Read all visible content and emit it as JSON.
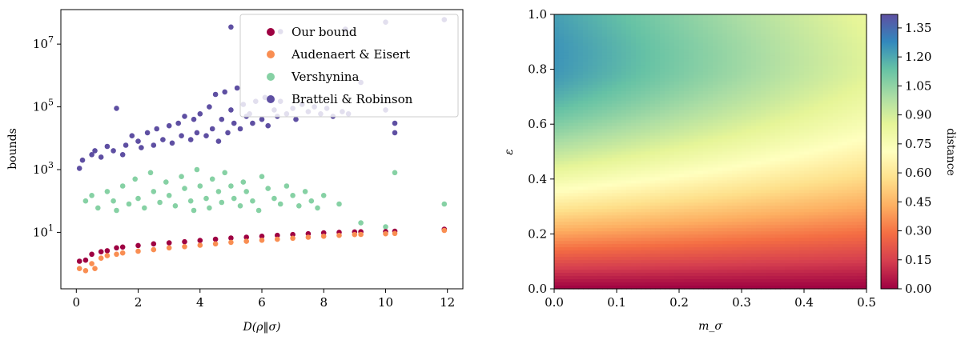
{
  "chart_data": [
    {
      "type": "scatter",
      "xlabel": "D(ρ‖σ)",
      "ylabel": "bounds",
      "xlim": [
        -0.5,
        12.5
      ],
      "ylim_log10": [
        -0.8,
        8.1
      ],
      "y_scale": "log",
      "grid": false,
      "legend_position": "top-right",
      "x_ticks": [
        0,
        2,
        4,
        6,
        8,
        10,
        12
      ],
      "y_ticks": [
        {
          "value": 10,
          "label": "10",
          "exp": "1"
        },
        {
          "value": 1000,
          "label": "10",
          "exp": "3"
        },
        {
          "value": 100000,
          "label": "10",
          "exp": "5"
        },
        {
          "value": 10000000,
          "label": "10",
          "exp": "7"
        }
      ],
      "series": [
        {
          "name": "Bratteli & Robinson",
          "color": "#5e4fa2",
          "points": [
            [
              0.1,
              1100
            ],
            [
              0.2,
              2000
            ],
            [
              0.5,
              3000
            ],
            [
              0.6,
              4000
            ],
            [
              0.8,
              2500
            ],
            [
              1.0,
              5500
            ],
            [
              1.2,
              4000
            ],
            [
              1.3,
              90000
            ],
            [
              1.5,
              3000
            ],
            [
              1.6,
              6000
            ],
            [
              1.8,
              12000
            ],
            [
              2.0,
              8000
            ],
            [
              2.1,
              5000
            ],
            [
              2.3,
              15000
            ],
            [
              2.5,
              6000
            ],
            [
              2.6,
              20000
            ],
            [
              2.8,
              9000
            ],
            [
              3.0,
              25000
            ],
            [
              3.1,
              7000
            ],
            [
              3.3,
              30000
            ],
            [
              3.4,
              12000
            ],
            [
              3.5,
              50000
            ],
            [
              3.7,
              9000
            ],
            [
              3.8,
              40000
            ],
            [
              3.9,
              15000
            ],
            [
              4.0,
              60000
            ],
            [
              4.2,
              12000
            ],
            [
              4.3,
              100000
            ],
            [
              4.4,
              20000
            ],
            [
              4.5,
              250000
            ],
            [
              4.6,
              8000
            ],
            [
              4.7,
              40000
            ],
            [
              4.8,
              300000
            ],
            [
              4.9,
              15000
            ],
            [
              5.0,
              80000
            ],
            [
              5.1,
              30000
            ],
            [
              5.2,
              400000
            ],
            [
              5.3,
              20000
            ],
            [
              5.4,
              120000
            ],
            [
              5.5,
              50000
            ],
            [
              5.6,
              60000
            ],
            [
              5.7,
              30000
            ],
            [
              5.8,
              150000
            ],
            [
              6.0,
              40000
            ],
            [
              6.1,
              200000
            ],
            [
              6.2,
              25000
            ],
            [
              6.4,
              80000
            ],
            [
              6.5,
              50000
            ],
            [
              6.6,
              150000
            ],
            [
              6.8,
              60000
            ],
            [
              7.0,
              90000
            ],
            [
              7.1,
              40000
            ],
            [
              7.3,
              120000
            ],
            [
              7.5,
              70000
            ],
            [
              7.7,
              100000
            ],
            [
              7.9,
              60000
            ],
            [
              8.1,
              90000
            ],
            [
              8.3,
              50000
            ],
            [
              8.6,
              70000
            ],
            [
              8.8,
              60000
            ],
            [
              9.2,
              600000
            ],
            [
              10.0,
              80000
            ],
            [
              10.3,
              30000
            ],
            [
              10.3,
              15000
            ],
            [
              11.9,
              60000000
            ],
            [
              10.0,
              50000000
            ],
            [
              8.7,
              30000000
            ],
            [
              6.6,
              25000000
            ],
            [
              5.0,
              35000000
            ]
          ]
        },
        {
          "name": "Vershynina",
          "color": "#86d1a4",
          "points": [
            [
              0.3,
              100
            ],
            [
              0.5,
              150
            ],
            [
              0.7,
              60
            ],
            [
              1.0,
              200
            ],
            [
              1.2,
              100
            ],
            [
              1.3,
              50
            ],
            [
              1.5,
              300
            ],
            [
              1.7,
              80
            ],
            [
              1.9,
              500
            ],
            [
              2.0,
              120
            ],
            [
              2.2,
              60
            ],
            [
              2.4,
              800
            ],
            [
              2.5,
              200
            ],
            [
              2.7,
              90
            ],
            [
              2.9,
              400
            ],
            [
              3.0,
              150
            ],
            [
              3.2,
              70
            ],
            [
              3.4,
              600
            ],
            [
              3.5,
              250
            ],
            [
              3.7,
              100
            ],
            [
              3.8,
              50
            ],
            [
              3.9,
              1000
            ],
            [
              4.0,
              300
            ],
            [
              4.2,
              120
            ],
            [
              4.3,
              60
            ],
            [
              4.4,
              500
            ],
            [
              4.6,
              200
            ],
            [
              4.7,
              90
            ],
            [
              4.8,
              800
            ],
            [
              5.0,
              300
            ],
            [
              5.1,
              120
            ],
            [
              5.3,
              70
            ],
            [
              5.4,
              400
            ],
            [
              5.5,
              200
            ],
            [
              5.7,
              100
            ],
            [
              5.9,
              50
            ],
            [
              6.0,
              600
            ],
            [
              6.2,
              250
            ],
            [
              6.4,
              120
            ],
            [
              6.6,
              80
            ],
            [
              6.8,
              300
            ],
            [
              7.0,
              150
            ],
            [
              7.2,
              70
            ],
            [
              7.4,
              200
            ],
            [
              7.6,
              100
            ],
            [
              7.8,
              60
            ],
            [
              8.0,
              150
            ],
            [
              8.5,
              80
            ],
            [
              9.2,
              20
            ],
            [
              10.0,
              15
            ],
            [
              10.3,
              800
            ],
            [
              11.9,
              80
            ]
          ]
        },
        {
          "name": "Our bound",
          "color": "#9e0142",
          "points": [
            [
              0.1,
              1.2
            ],
            [
              0.3,
              1.3
            ],
            [
              0.5,
              2.0
            ],
            [
              0.8,
              2.4
            ],
            [
              1.0,
              2.6
            ],
            [
              1.3,
              3.2
            ],
            [
              1.5,
              3.4
            ],
            [
              2.0,
              3.8
            ],
            [
              2.5,
              4.3
            ],
            [
              3.0,
              4.6
            ],
            [
              3.5,
              5.0
            ],
            [
              4.0,
              5.5
            ],
            [
              4.5,
              6.0
            ],
            [
              5.0,
              6.6
            ],
            [
              5.5,
              7.0
            ],
            [
              6.0,
              7.5
            ],
            [
              6.5,
              8.0
            ],
            [
              7.0,
              8.5
            ],
            [
              7.5,
              9.0
            ],
            [
              8.0,
              9.6
            ],
            [
              8.5,
              10.0
            ],
            [
              9.0,
              10.3
            ],
            [
              9.2,
              10.4
            ],
            [
              10.0,
              10.6
            ],
            [
              10.3,
              10.8
            ],
            [
              11.9,
              12.5
            ]
          ]
        },
        {
          "name": "Audenaert & Eisert",
          "color": "#f98e52",
          "points": [
            [
              0.1,
              0.7
            ],
            [
              0.3,
              0.6
            ],
            [
              0.5,
              1.0
            ],
            [
              0.6,
              0.7
            ],
            [
              0.8,
              1.5
            ],
            [
              1.0,
              1.8
            ],
            [
              1.3,
              2.0
            ],
            [
              1.5,
              2.2
            ],
            [
              2.0,
              2.5
            ],
            [
              2.5,
              2.8
            ],
            [
              3.0,
              3.2
            ],
            [
              3.5,
              3.5
            ],
            [
              4.0,
              3.9
            ],
            [
              4.5,
              4.3
            ],
            [
              5.0,
              4.8
            ],
            [
              5.5,
              5.2
            ],
            [
              6.0,
              5.6
            ],
            [
              6.5,
              6.0
            ],
            [
              7.0,
              6.5
            ],
            [
              7.5,
              7.0
            ],
            [
              8.0,
              7.5
            ],
            [
              8.5,
              8.0
            ],
            [
              9.0,
              8.5
            ],
            [
              9.2,
              8.6
            ],
            [
              10.0,
              9.0
            ],
            [
              10.3,
              9.2
            ],
            [
              11.9,
              11.5
            ]
          ]
        }
      ]
    },
    {
      "type": "heatmap",
      "xlabel": "m_σ",
      "ylabel": "ε",
      "colorbar_label": "distance",
      "colormap": "Spectral",
      "xlim": [
        0.0,
        0.5
      ],
      "ylim": [
        0.0,
        1.0
      ],
      "zlim": [
        0.0,
        1.42
      ],
      "x_ticks": [
        "0.0",
        "0.1",
        "0.2",
        "0.3",
        "0.4",
        "0.5"
      ],
      "y_ticks": [
        "0.0",
        "0.2",
        "0.4",
        "0.6",
        "0.8",
        "1.0"
      ],
      "colorbar_ticks": [
        "0.00",
        "0.15",
        "0.30",
        "0.45",
        "0.60",
        "0.75",
        "0.90",
        "1.05",
        "1.20",
        "1.35"
      ]
    }
  ]
}
